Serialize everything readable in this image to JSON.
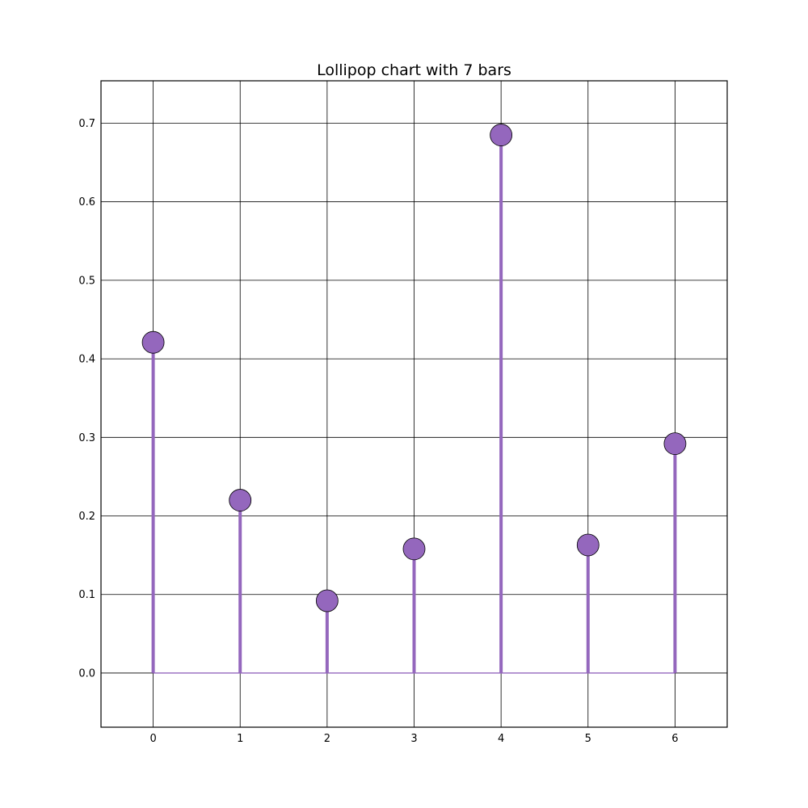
{
  "chart_data": {
    "type": "lollipop",
    "title": "Lollipop chart with 7 bars",
    "xlabel": "",
    "ylabel": "",
    "x": [
      0,
      1,
      2,
      3,
      4,
      5,
      6
    ],
    "values": [
      0.421,
      0.22,
      0.092,
      0.158,
      0.685,
      0.163,
      0.292
    ],
    "xlim": [
      -0.6,
      6.6
    ],
    "ylim": [
      -0.069,
      0.754
    ],
    "xticks": [
      "0",
      "1",
      "2",
      "3",
      "4",
      "5",
      "6"
    ],
    "yticks": [
      "0.0",
      "0.1",
      "0.2",
      "0.3",
      "0.4",
      "0.5",
      "0.6",
      "0.7"
    ],
    "grid": true,
    "baseline": 0,
    "colors": {
      "stem": "#9467bd",
      "marker_fill": "#9467bd",
      "marker_edge": "#000000",
      "grid": "#000000",
      "baseline": "#9467bd"
    }
  }
}
